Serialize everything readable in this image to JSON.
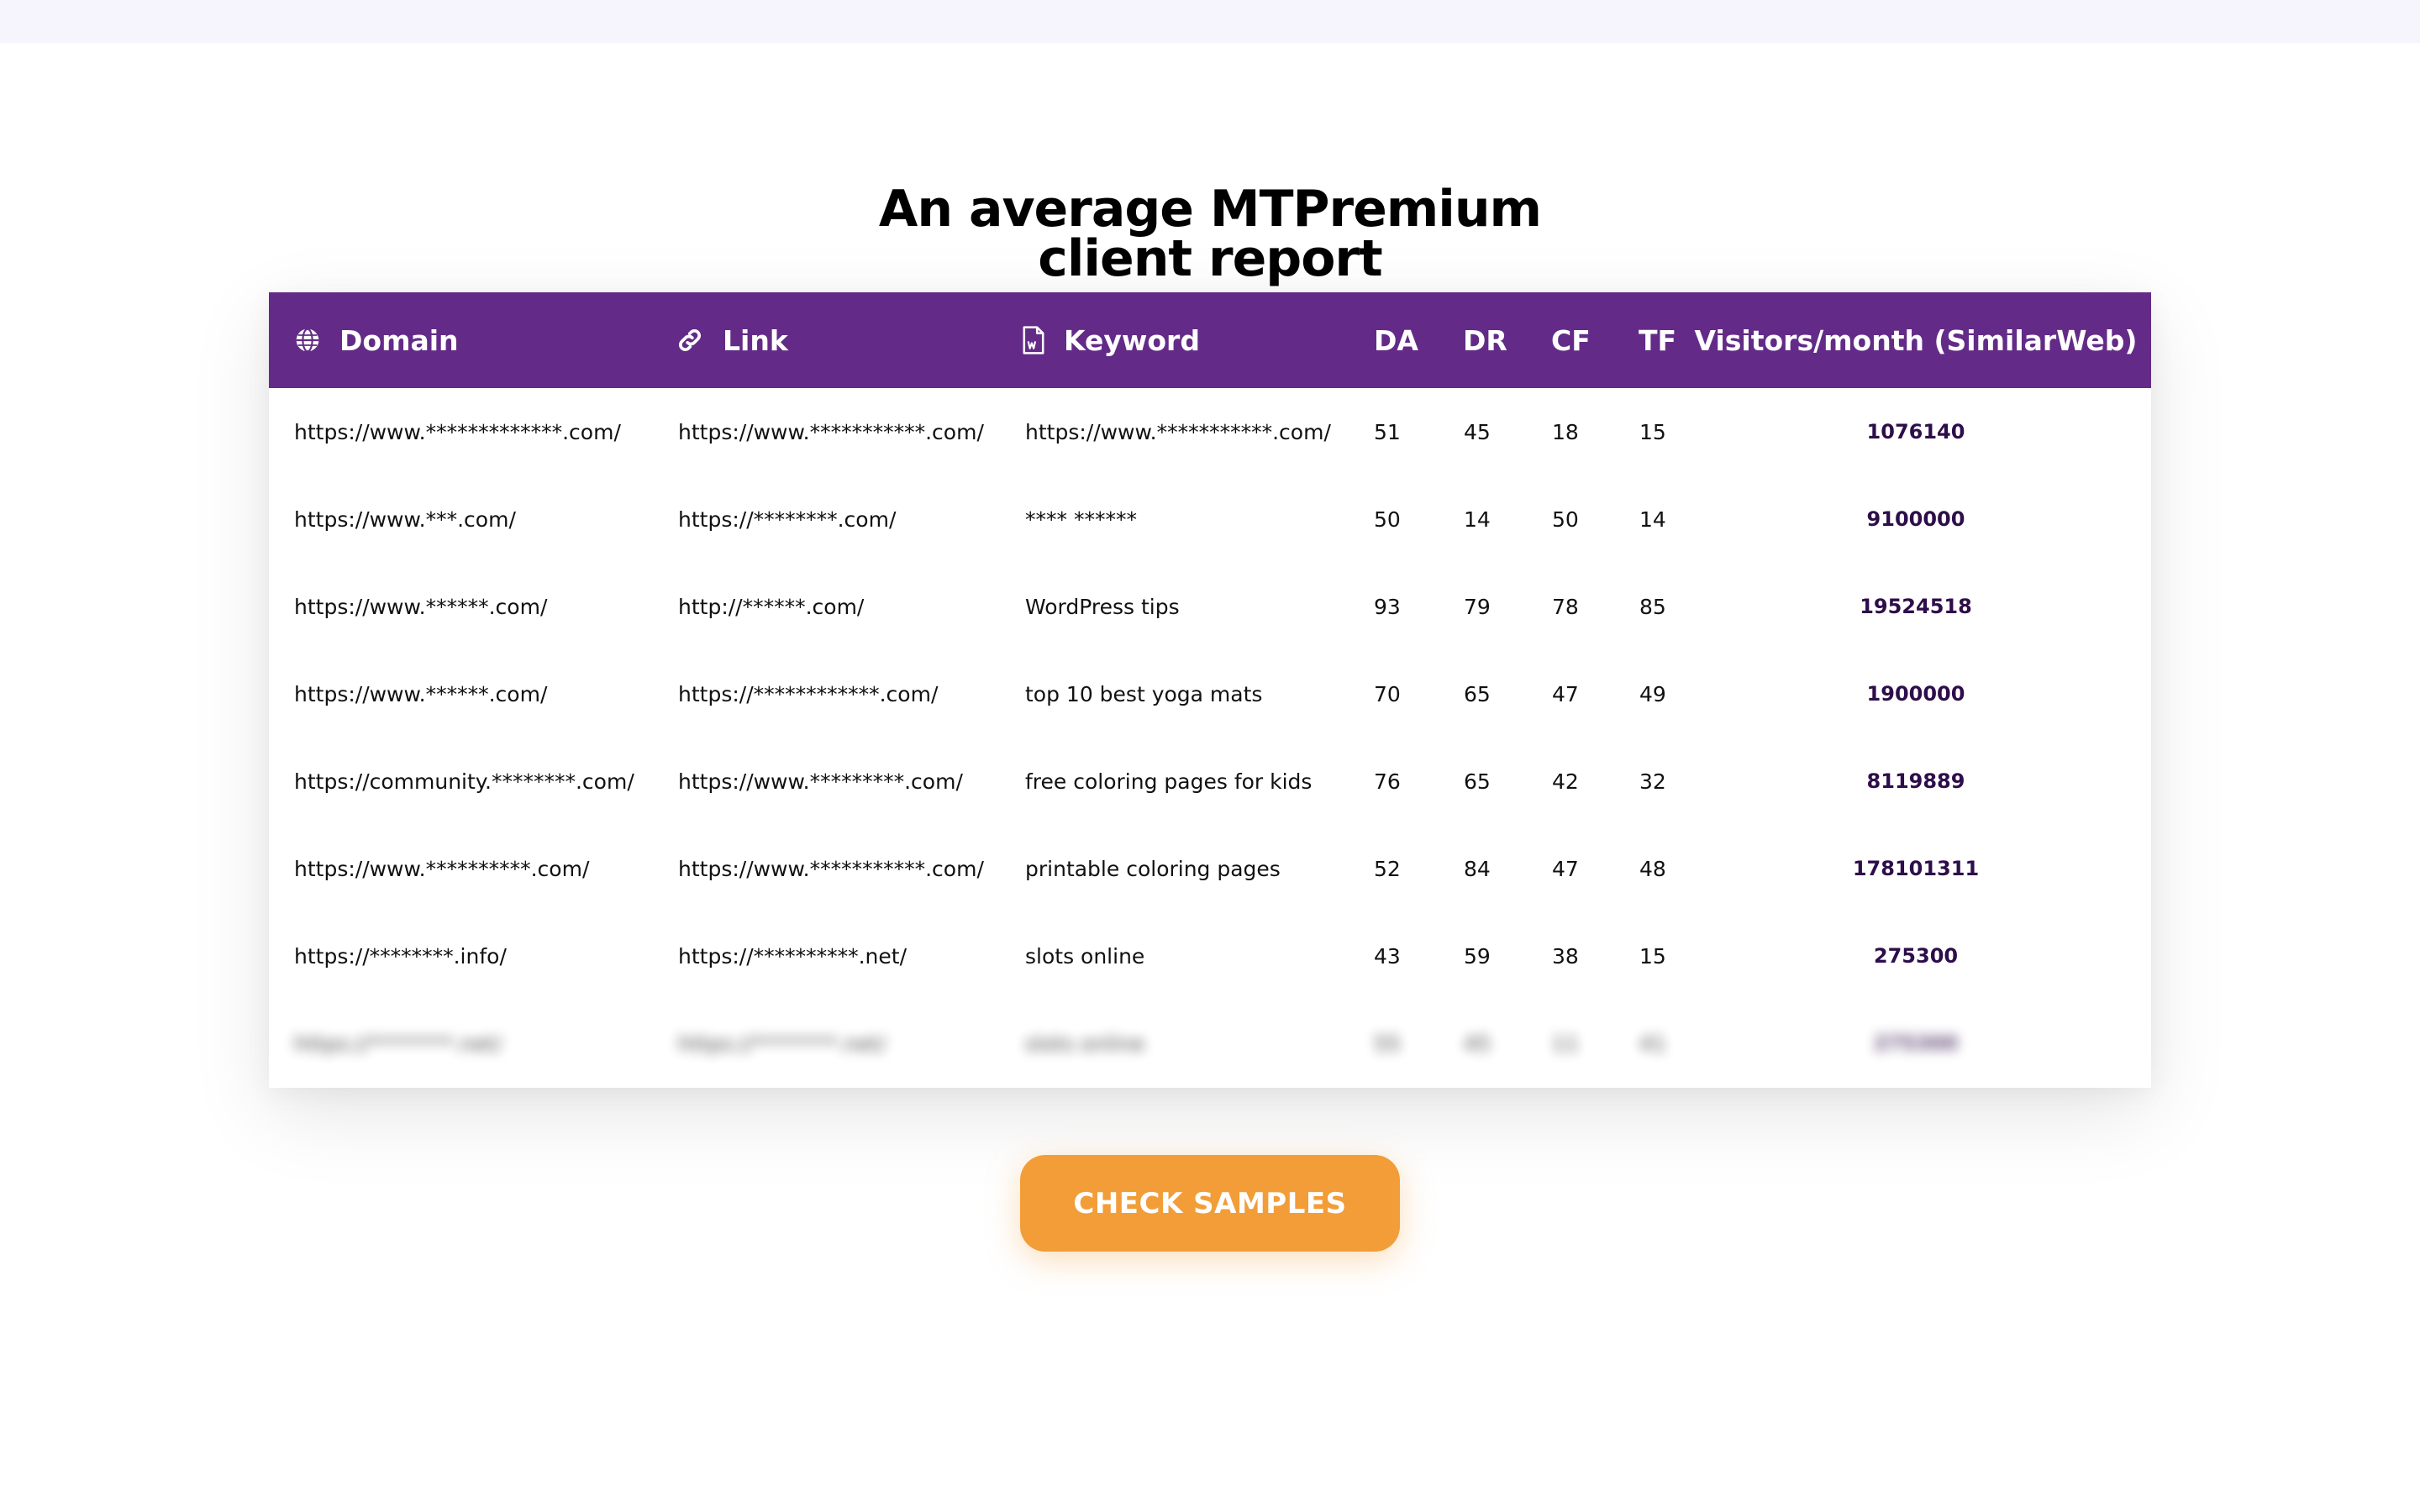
{
  "section": {
    "title_line1": "An average MTPremium",
    "title_line2": "client report"
  },
  "table": {
    "headers": {
      "domain": "Domain",
      "link": "Link",
      "keyword": "Keyword",
      "da": "DA",
      "dr": "DR",
      "cf": "CF",
      "tf": "TF",
      "visitors": "Visitors/month (SimilarWeb)"
    },
    "header_icons": {
      "domain": "globe-icon",
      "link": "link-icon",
      "keyword": "word-document-icon"
    },
    "rows": [
      {
        "domain": "https://www.*************.com/",
        "link": "https://www.***********.com/",
        "keyword": "https://www.***********.com/",
        "da": "51",
        "dr": "45",
        "cf": "18",
        "tf": "15",
        "visitors": "1076140"
      },
      {
        "domain": "https://www.***.com/",
        "link": "https://********.com/",
        "keyword": "**** ******",
        "da": "50",
        "dr": "14",
        "cf": "50",
        "tf": "14",
        "visitors": "9100000"
      },
      {
        "domain": "https://www.******.com/",
        "link": "http://******.com/",
        "keyword": "WordPress tips",
        "da": "93",
        "dr": "79",
        "cf": "78",
        "tf": "85",
        "visitors": "19524518"
      },
      {
        "domain": "https://www.******.com/",
        "link": "https://************.com/",
        "keyword": "top 10 best yoga mats",
        "da": "70",
        "dr": "65",
        "cf": "47",
        "tf": "49",
        "visitors": "1900000"
      },
      {
        "domain": "https://community.********.com/",
        "link": "https://www.*********.com/",
        "keyword": "free coloring pages for kids",
        "da": "76",
        "dr": "65",
        "cf": "42",
        "tf": "32",
        "visitors": "8119889"
      },
      {
        "domain": "https://www.**********.com/",
        "link": "https://www.***********.com/",
        "keyword": "printable coloring pages",
        "da": "52",
        "dr": "84",
        "cf": "47",
        "tf": "48",
        "visitors": "178101311"
      },
      {
        "domain": "https://********.info/",
        "link": "https://**********.net/",
        "keyword": "slots online",
        "da": "43",
        "dr": "59",
        "cf": "38",
        "tf": "15",
        "visitors": "275300"
      },
      {
        "domain": "https://********.net/",
        "link": "https://********.net/",
        "keyword": "slots online",
        "da": "55",
        "dr": "45",
        "cf": "11",
        "tf": "41",
        "visitors": "275300"
      }
    ],
    "blurred_row_index": 7
  },
  "cta": {
    "label": "CHECK SAMPLES"
  },
  "colors": {
    "header_bg": "#632b87",
    "visitors_text": "#2e0e4a",
    "cta_bg": "#f29d38",
    "top_band": "#f6f4fd"
  }
}
